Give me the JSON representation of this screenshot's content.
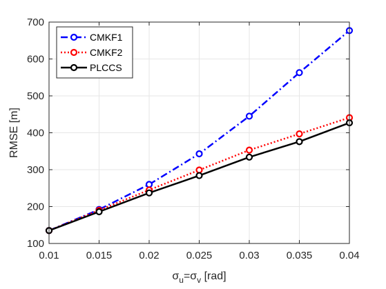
{
  "chart_data": {
    "type": "line",
    "title": "",
    "xlabel_parts": [
      "σ",
      "u",
      "=σ",
      "v",
      " [rad]"
    ],
    "ylabel": "RMSE [m]",
    "xlim": [
      0.01,
      0.04
    ],
    "ylim": [
      100,
      700
    ],
    "x": [
      0.01,
      0.015,
      0.02,
      0.025,
      0.03,
      0.035,
      0.04
    ],
    "xticks": [
      "0.01",
      "0.015",
      "0.02",
      "0.025",
      "0.03",
      "0.035",
      "0.04"
    ],
    "yticks": [
      "100",
      "200",
      "300",
      "400",
      "500",
      "600",
      "700"
    ],
    "grid": true,
    "legend_position": "top-left",
    "series": [
      {
        "name": "CMKF1",
        "color": "#0000ff",
        "line_style": "dash-dot",
        "marker": "circle",
        "values": [
          135,
          192,
          260,
          343,
          445,
          563,
          677
        ]
      },
      {
        "name": "CMKF2",
        "color": "#ff0000",
        "line_style": "dotted",
        "marker": "circle",
        "values": [
          135,
          190,
          245,
          299,
          353,
          397,
          441
        ]
      },
      {
        "name": "PLCCS",
        "color": "#000000",
        "line_style": "solid",
        "marker": "circle",
        "values": [
          135,
          186,
          237,
          284,
          334,
          376,
          427
        ]
      }
    ]
  }
}
